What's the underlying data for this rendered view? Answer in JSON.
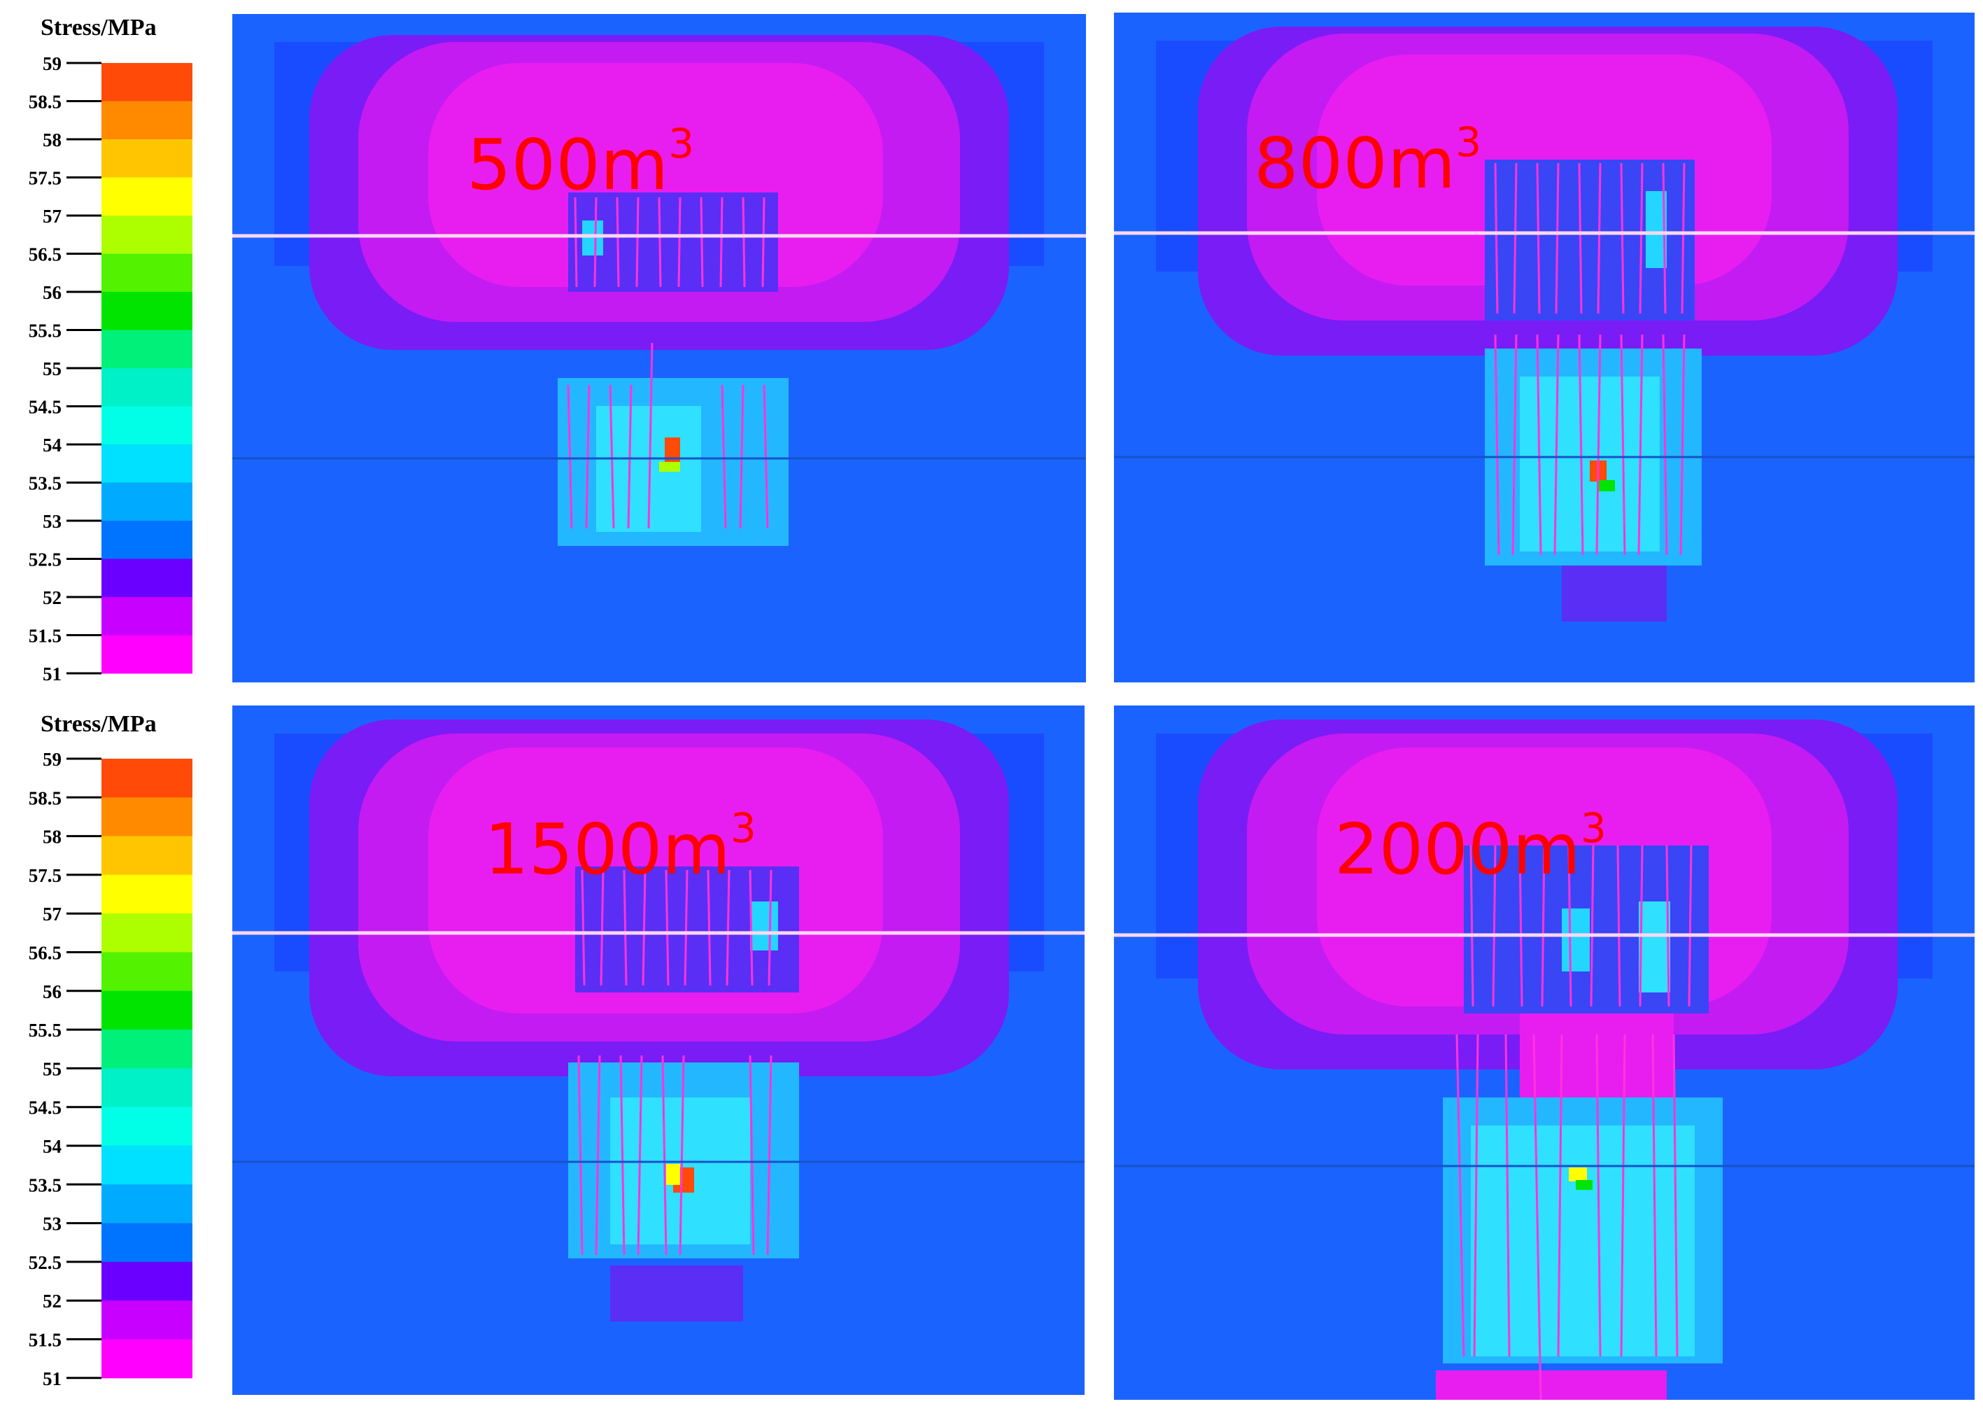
{
  "colorbar": {
    "title": "Stress/MPa",
    "ticks": [
      "59",
      "58.5",
      "58",
      "57.5",
      "57",
      "56.5",
      "56",
      "55.5",
      "55",
      "54.5",
      "54",
      "53.5",
      "53",
      "52.5",
      "52",
      "51.5",
      "51"
    ],
    "colors": [
      "#ff4a08",
      "#ff8a00",
      "#ffc600",
      "#ffff00",
      "#adff00",
      "#52f200",
      "#00e400",
      "#00f07a",
      "#00f0c8",
      "#00ffe6",
      "#00e0ff",
      "#00aaff",
      "#0074ff",
      "#6a00ff",
      "#c800ff",
      "#ff00ff"
    ]
  },
  "colors": {
    "background_blue": "#1b63ff",
    "magenta": "#e81ef0",
    "purple": "#9b1bf3",
    "cyan": "#23d6ff",
    "fracture_line": "#ff33dd",
    "label": "#ff0000",
    "interface_line": "#ffd8f0"
  },
  "chart_data": {
    "type": "heatmap",
    "colorbar": {
      "label": "Stress/MPa",
      "range": [
        51,
        59
      ],
      "ticks": [
        51,
        51.5,
        52,
        52.5,
        53,
        53.5,
        54,
        54.5,
        55,
        55.5,
        56,
        56.5,
        57,
        57.5,
        58,
        58.5,
        59
      ]
    },
    "panels": [
      {
        "label_base": "500m",
        "label_sup": "3",
        "volume_m3": 500
      },
      {
        "label_base": "800m",
        "label_sup": "3",
        "volume_m3": 800
      },
      {
        "label_base": "1500m",
        "label_sup": "3",
        "volume_m3": 1500
      },
      {
        "label_base": "2000m",
        "label_sup": "3",
        "volume_m3": 2000
      }
    ]
  }
}
